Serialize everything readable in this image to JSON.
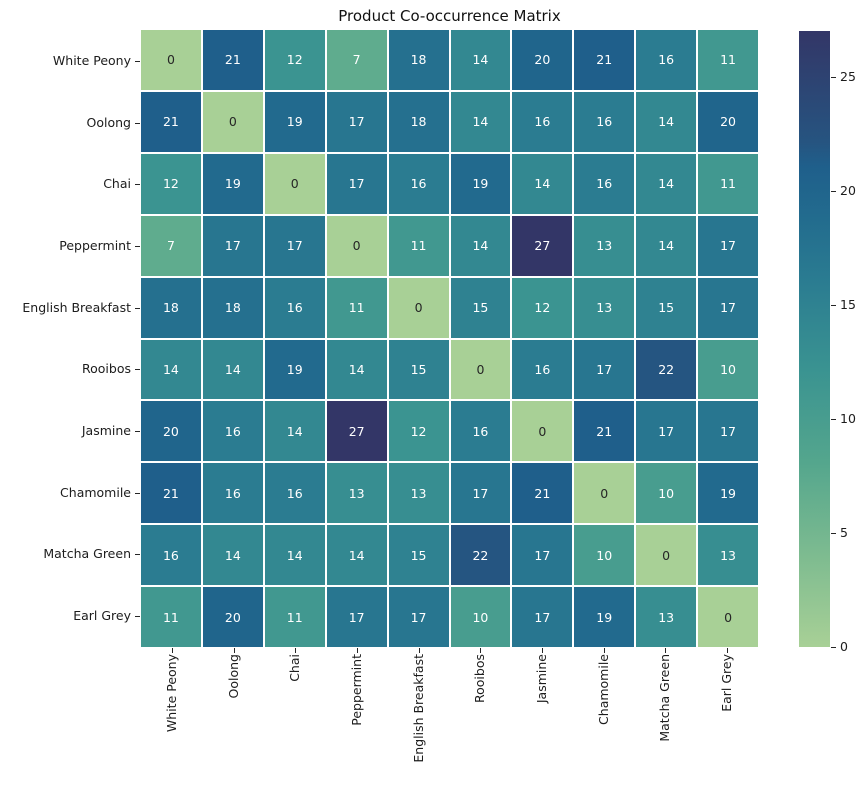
{
  "chart_data": {
    "type": "heatmap",
    "title": "Product Co-occurrence Matrix",
    "categories": [
      "White Peony",
      "Oolong",
      "Chai",
      "Peppermint",
      "English Breakfast",
      "Rooibos",
      "Jasmine",
      "Chamomile",
      "Matcha Green",
      "Earl Grey"
    ],
    "matrix": [
      [
        0,
        21,
        12,
        7,
        18,
        14,
        20,
        21,
        16,
        11
      ],
      [
        21,
        0,
        19,
        17,
        18,
        14,
        16,
        16,
        14,
        20
      ],
      [
        12,
        19,
        0,
        17,
        16,
        19,
        14,
        16,
        14,
        11
      ],
      [
        7,
        17,
        17,
        0,
        11,
        14,
        27,
        13,
        14,
        17
      ],
      [
        18,
        18,
        16,
        11,
        0,
        15,
        12,
        13,
        15,
        17
      ],
      [
        14,
        14,
        19,
        14,
        15,
        0,
        16,
        17,
        22,
        10
      ],
      [
        20,
        16,
        14,
        27,
        12,
        16,
        0,
        21,
        17,
        17
      ],
      [
        21,
        16,
        16,
        13,
        13,
        17,
        21,
        0,
        10,
        19
      ],
      [
        16,
        14,
        14,
        14,
        15,
        22,
        17,
        10,
        0,
        13
      ],
      [
        11,
        20,
        11,
        17,
        17,
        10,
        17,
        19,
        13,
        0
      ]
    ],
    "vmin": 0,
    "vmax": 27,
    "grid_line_color": "#ffffff",
    "annotation_colors": {
      "light_cells": "#262626",
      "dark_cells": "#ffffff",
      "dark_text_max_value": 4
    },
    "colorscale": [
      {
        "t": 0.0,
        "color": "#a8d096"
      },
      {
        "t": 0.15,
        "color": "#7dbb90"
      },
      {
        "t": 0.3,
        "color": "#54a68d"
      },
      {
        "t": 0.45,
        "color": "#3a9391"
      },
      {
        "t": 0.6,
        "color": "#2a7b91"
      },
      {
        "t": 0.7,
        "color": "#226b8e"
      },
      {
        "t": 0.78,
        "color": "#1f5f8b"
      },
      {
        "t": 0.82,
        "color": "#265480"
      },
      {
        "t": 1.0,
        "color": "#333667"
      }
    ],
    "colorbar": {
      "ticks": [
        0,
        5,
        10,
        15,
        20,
        25
      ],
      "position": "right"
    },
    "legend": false,
    "grid": false
  }
}
